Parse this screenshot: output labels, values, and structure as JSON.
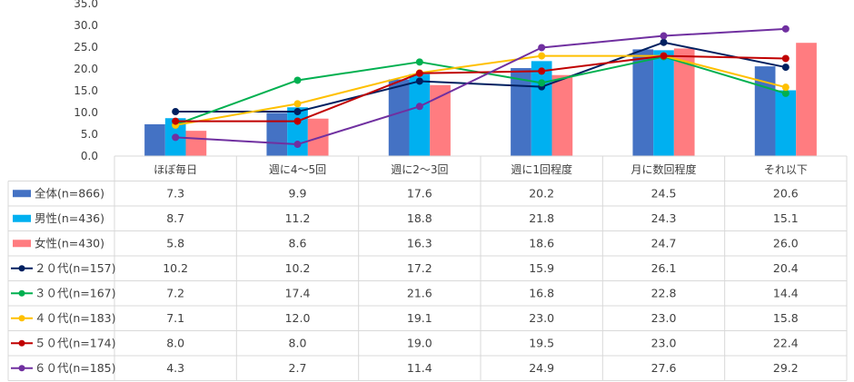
{
  "chart_data": {
    "type": "bar",
    "title": "",
    "ylim": [
      0,
      35
    ],
    "yticks": [
      "0.0",
      "5.0",
      "10.0",
      "15.0",
      "20.0",
      "25.0",
      "30.0",
      "35.0"
    ],
    "categories": [
      "ほぼ毎日",
      "週に4～5回",
      "週に2～3回",
      "週に1回程度",
      "月に数回程度",
      "それ以下"
    ],
    "bar_series": [
      {
        "name": "全体(n=866)",
        "color": "#4472C4",
        "values": [
          7.3,
          9.9,
          17.6,
          20.2,
          24.5,
          20.6
        ],
        "labels": [
          "7.3",
          "9.9",
          "17.6",
          "20.2",
          "24.5",
          "20.6"
        ]
      },
      {
        "name": "男性(n=436)",
        "color": "#00B0F0",
        "values": [
          8.7,
          11.2,
          18.8,
          21.8,
          24.3,
          15.1
        ],
        "labels": [
          "8.7",
          "11.2",
          "18.8",
          "21.8",
          "24.3",
          "15.1"
        ]
      },
      {
        "name": "女性(n=430)",
        "color": "#FF7C80",
        "values": [
          5.8,
          8.6,
          16.3,
          18.6,
          24.7,
          26.0
        ],
        "labels": [
          "5.8",
          "8.6",
          "16.3",
          "18.6",
          "24.7",
          "26.0"
        ]
      }
    ],
    "line_series": [
      {
        "name": "２０代(n=157)",
        "color": "#002060",
        "values": [
          10.2,
          10.2,
          17.2,
          15.9,
          26.1,
          20.4
        ],
        "labels": [
          "10.2",
          "10.2",
          "17.2",
          "15.9",
          "26.1",
          "20.4"
        ]
      },
      {
        "name": "３０代(n=167)",
        "color": "#00B050",
        "values": [
          7.2,
          17.4,
          21.6,
          16.8,
          22.8,
          14.4
        ],
        "labels": [
          "7.2",
          "17.4",
          "21.6",
          "16.8",
          "22.8",
          "14.4"
        ]
      },
      {
        "name": "４０代(n=183)",
        "color": "#FFC000",
        "values": [
          7.1,
          12.0,
          19.1,
          23.0,
          23.0,
          15.8
        ],
        "labels": [
          "7.1",
          "12.0",
          "19.1",
          "23.0",
          "23.0",
          "15.8"
        ]
      },
      {
        "name": "５０代(n=174)",
        "color": "#C00000",
        "values": [
          8.0,
          8.0,
          19.0,
          19.5,
          23.0,
          22.4
        ],
        "labels": [
          "8.0",
          "8.0",
          "19.0",
          "19.5",
          "23.0",
          "22.4"
        ]
      },
      {
        "name": "６０代(n=185)",
        "color": "#7030A0",
        "values": [
          4.3,
          2.7,
          11.4,
          24.9,
          27.6,
          29.2
        ],
        "labels": [
          "4.3",
          "2.7",
          "11.4",
          "24.9",
          "27.6",
          "29.2"
        ]
      }
    ],
    "legend_placement": "data-table"
  }
}
